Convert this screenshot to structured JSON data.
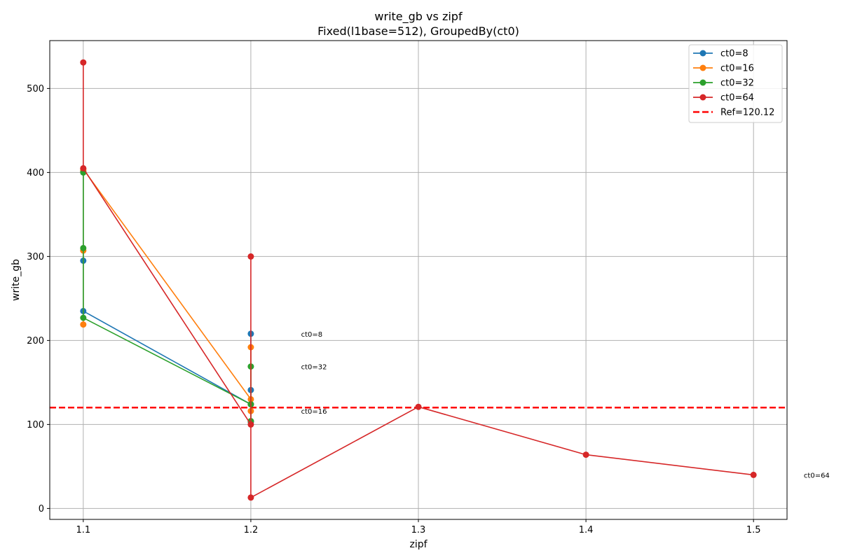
{
  "chart_data": {
    "type": "line",
    "title": "write_gb vs zipf",
    "subtitle": "Fixed(l1base=512), GroupedBy(ct0)",
    "xlabel": "zipf",
    "ylabel": "write_gb",
    "xlim": [
      1.08,
      1.52
    ],
    "ylim": [
      -13,
      557
    ],
    "xticks": [
      1.1,
      1.2,
      1.3,
      1.4,
      1.5
    ],
    "yticks": [
      0,
      100,
      200,
      300,
      400,
      500
    ],
    "grid": true,
    "legend_position": "upper right",
    "series": [
      {
        "name": "ct0=8",
        "color": "#1f77b4",
        "points": [
          [
            1.1,
            401
          ],
          [
            1.1,
            295
          ],
          [
            1.1,
            235
          ],
          [
            1.2,
            124
          ],
          [
            1.2,
            208
          ],
          [
            1.2,
            141
          ],
          [
            1.2,
            103
          ]
        ]
      },
      {
        "name": "ct0=16",
        "color": "#ff7f0e",
        "points": [
          [
            1.1,
            402
          ],
          [
            1.1,
            307
          ],
          [
            1.1,
            219
          ],
          [
            1.1,
            404
          ],
          [
            1.2,
            130
          ],
          [
            1.2,
            192
          ],
          [
            1.2,
            116
          ]
        ]
      },
      {
        "name": "ct0=32",
        "color": "#2ca02c",
        "points": [
          [
            1.1,
            400
          ],
          [
            1.1,
            310
          ],
          [
            1.1,
            227
          ],
          [
            1.2,
            124
          ],
          [
            1.2,
            169
          ],
          [
            1.2,
            104
          ]
        ]
      },
      {
        "name": "ct0=64",
        "color": "#d62728",
        "points": [
          [
            1.1,
            531
          ],
          [
            1.1,
            405
          ],
          [
            1.2,
            100
          ],
          [
            1.2,
            300
          ],
          [
            1.2,
            13
          ],
          [
            1.3,
            121
          ],
          [
            1.4,
            64
          ],
          [
            1.5,
            40
          ]
        ]
      }
    ],
    "reference_line": {
      "label": "Ref=120.12",
      "value": 120.12,
      "color": "#ff0000",
      "style": "dashed"
    },
    "annotations": [
      {
        "text": "ct0=8",
        "x": 1.23,
        "y": 208
      },
      {
        "text": "ct0=32",
        "x": 1.23,
        "y": 169
      },
      {
        "text": "ct0=16",
        "x": 1.23,
        "y": 116
      },
      {
        "text": "ct0=64",
        "x": 1.53,
        "y": 40
      }
    ]
  }
}
